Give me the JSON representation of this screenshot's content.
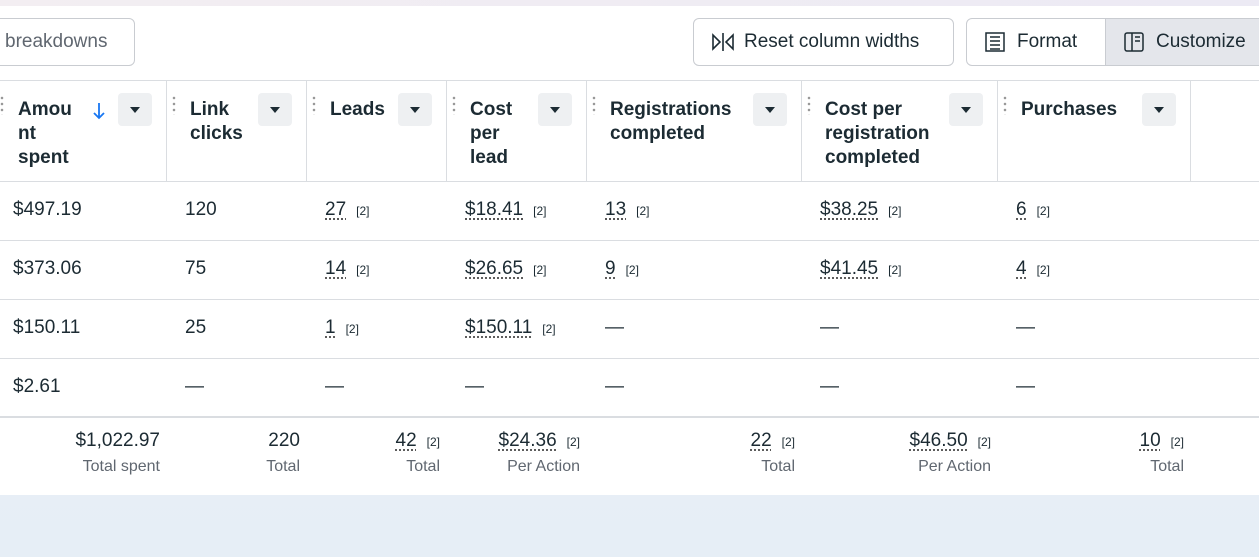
{
  "toolbar": {
    "breakdowns": "breakdowns",
    "reset": "Reset column widths",
    "format": "Format",
    "customize": "Customize"
  },
  "table": {
    "headers": [
      "Amount spent",
      "Link clicks",
      "Leads",
      "Cost per lead",
      "Registrations completed",
      "Cost per registration completed",
      "Purchases"
    ],
    "rows": [
      [
        {
          "text": "$497.19"
        },
        {
          "text": "120"
        },
        {
          "text": "27",
          "ref": "[2]"
        },
        {
          "text": "$18.41",
          "ref": "[2]"
        },
        {
          "text": "13",
          "ref": "[2]"
        },
        {
          "text": "$38.25",
          "ref": "[2]"
        },
        {
          "text": "6",
          "ref": "[2]"
        }
      ],
      [
        {
          "text": "$373.06"
        },
        {
          "text": "75"
        },
        {
          "text": "14",
          "ref": "[2]"
        },
        {
          "text": "$26.65",
          "ref": "[2]"
        },
        {
          "text": "9",
          "ref": "[2]"
        },
        {
          "text": "$41.45",
          "ref": "[2]"
        },
        {
          "text": "4",
          "ref": "[2]"
        }
      ],
      [
        {
          "text": "$150.11"
        },
        {
          "text": "25"
        },
        {
          "text": "1",
          "ref": "[2]"
        },
        {
          "text": "$150.11",
          "ref": "[2]"
        },
        {
          "text": "—"
        },
        {
          "text": "—"
        },
        {
          "text": "—"
        }
      ],
      [
        {
          "text": "$2.61"
        },
        {
          "text": "—"
        },
        {
          "text": "—"
        },
        {
          "text": "—"
        },
        {
          "text": "—"
        },
        {
          "text": "—"
        },
        {
          "text": "—"
        }
      ]
    ],
    "totals": [
      {
        "text": "$1,022.97",
        "label": "Total spent"
      },
      {
        "text": "220",
        "label": "Total"
      },
      {
        "text": "42",
        "ref": "[2]",
        "label": "Total"
      },
      {
        "text": "$24.36",
        "ref": "[2]",
        "label": "Per Action"
      },
      {
        "text": "22",
        "ref": "[2]",
        "label": "Total"
      },
      {
        "text": "$46.50",
        "ref": "[2]",
        "label": "Per Action"
      },
      {
        "text": "10",
        "ref": "[2]",
        "label": "Total"
      }
    ]
  }
}
